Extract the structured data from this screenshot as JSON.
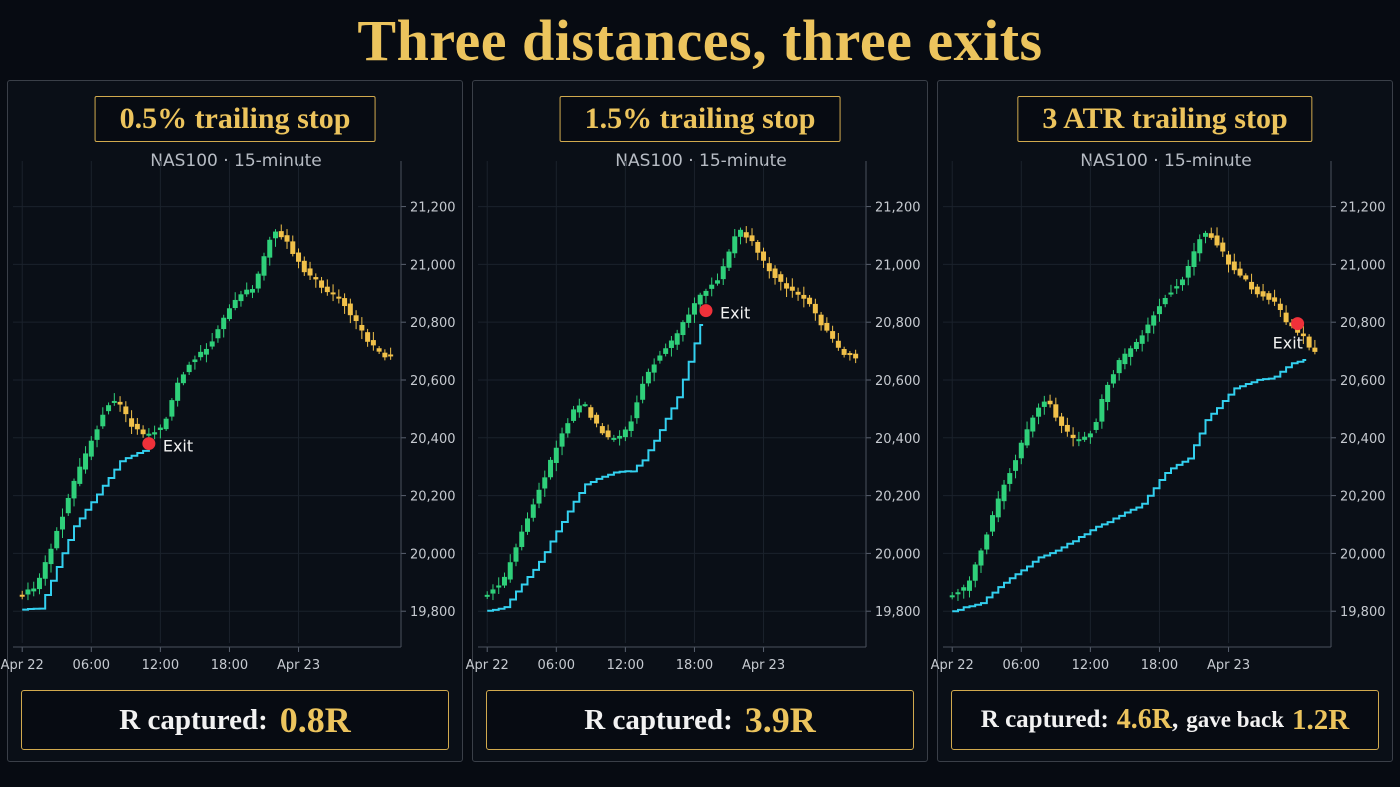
{
  "title": "Three distances, three exits",
  "colors": {
    "up": "#2fd07a",
    "down": "#f1c14a",
    "stop": "#33d0ef",
    "exit": "#f0313a",
    "accent": "#ecc45d",
    "grid": "#1b222c"
  },
  "chart_data": [
    {
      "type": "candlestick",
      "title": "0.5% trailing stop",
      "subtitle": "NAS100 · 15-minute",
      "x_ticks": [
        "Apr 22",
        "06:00",
        "12:00",
        "18:00",
        "Apr 23"
      ],
      "y_ticks": [
        "19,800",
        "20,000",
        "20,200",
        "20,400",
        "20,600",
        "20,800",
        "21,000",
        "21,200"
      ],
      "ylim": [
        19690,
        21330
      ],
      "x_hours_range": [
        -0.8,
        32.9
      ],
      "price_path": [
        [
          0,
          19860
        ],
        [
          1.5,
          19880
        ],
        [
          4.5,
          20220
        ],
        [
          7.5,
          20510
        ],
        [
          8.5,
          20530
        ],
        [
          9.5,
          20455
        ],
        [
          11.0,
          20400
        ],
        [
          12.5,
          20440
        ],
        [
          13.5,
          20560
        ],
        [
          14.5,
          20650
        ],
        [
          16.5,
          20720
        ],
        [
          18.5,
          20870
        ],
        [
          20.5,
          20930
        ],
        [
          22.0,
          21120
        ],
        [
          23.0,
          21090
        ],
        [
          24.5,
          20990
        ],
        [
          26.5,
          20910
        ],
        [
          28.0,
          20880
        ],
        [
          29.5,
          20780
        ],
        [
          31.0,
          20700
        ],
        [
          32.0,
          20680
        ]
      ],
      "stop_path": [
        [
          0,
          19805
        ],
        [
          1.5,
          19810
        ],
        [
          4.5,
          20095
        ],
        [
          7.5,
          20260
        ],
        [
          8.5,
          20320
        ],
        [
          11.0,
          20365
        ]
      ],
      "exit": {
        "x": 11.0,
        "y": 20380,
        "label": "Exit"
      },
      "result": {
        "label": "R captured:",
        "value": "0.8R"
      }
    },
    {
      "type": "candlestick",
      "title": "1.5% trailing stop",
      "subtitle": "NAS100 · 15-minute",
      "x_ticks": [
        "Apr 22",
        "06:00",
        "12:00",
        "18:00",
        "Apr 23"
      ],
      "y_ticks": [
        "19,800",
        "20,000",
        "20,200",
        "20,400",
        "20,600",
        "20,800",
        "21,000",
        "21,200"
      ],
      "ylim": [
        19690,
        21330
      ],
      "x_hours_range": [
        -0.8,
        32.9
      ],
      "price_path": [
        [
          0,
          19860
        ],
        [
          1.5,
          19890
        ],
        [
          4.5,
          20200
        ],
        [
          7.5,
          20480
        ],
        [
          8.5,
          20530
        ],
        [
          9.5,
          20455
        ],
        [
          11.0,
          20385
        ],
        [
          12.5,
          20430
        ],
        [
          13.5,
          20560
        ],
        [
          14.5,
          20650
        ],
        [
          16.5,
          20740
        ],
        [
          18.5,
          20880
        ],
        [
          20.5,
          20960
        ],
        [
          22.0,
          21120
        ],
        [
          23.0,
          21090
        ],
        [
          24.5,
          20990
        ],
        [
          26.5,
          20910
        ],
        [
          28.0,
          20880
        ],
        [
          29.5,
          20780
        ],
        [
          31.0,
          20700
        ],
        [
          32.0,
          20680
        ]
      ],
      "stop_path": [
        [
          0,
          19800
        ],
        [
          1.5,
          19815
        ],
        [
          4.5,
          19970
        ],
        [
          7.5,
          20180
        ],
        [
          8.5,
          20240
        ],
        [
          11.0,
          20280
        ],
        [
          12.5,
          20285
        ],
        [
          13.5,
          20320
        ],
        [
          14.5,
          20390
        ],
        [
          16.5,
          20540
        ],
        [
          18.5,
          20790
        ]
      ],
      "exit": {
        "x": 19.0,
        "y": 20840,
        "label": "Exit"
      },
      "result": {
        "label": "R captured:",
        "value": "3.9R"
      }
    },
    {
      "type": "candlestick",
      "title": "3 ATR trailing stop",
      "subtitle": "NAS100 · 15-minute",
      "x_ticks": [
        "Apr 22",
        "06:00",
        "12:00",
        "18:00",
        "Apr 23"
      ],
      "y_ticks": [
        "19,800",
        "20,000",
        "20,200",
        "20,400",
        "20,600",
        "20,800",
        "21,000",
        "21,200"
      ],
      "ylim": [
        19690,
        21330
      ],
      "x_hours_range": [
        -0.8,
        32.9
      ],
      "price_path": [
        [
          0,
          19860
        ],
        [
          1.5,
          19880
        ],
        [
          4.5,
          20210
        ],
        [
          7.5,
          20500
        ],
        [
          8.5,
          20530
        ],
        [
          9.5,
          20450
        ],
        [
          11.0,
          20380
        ],
        [
          12.5,
          20430
        ],
        [
          13.5,
          20560
        ],
        [
          14.5,
          20650
        ],
        [
          16.5,
          20740
        ],
        [
          18.5,
          20880
        ],
        [
          20.5,
          20960
        ],
        [
          22.0,
          21120
        ],
        [
          23.0,
          21090
        ],
        [
          24.5,
          20990
        ],
        [
          26.5,
          20910
        ],
        [
          28.0,
          20880
        ],
        [
          29.5,
          20790
        ],
        [
          30.5,
          20760
        ],
        [
          31.5,
          20700
        ]
      ],
      "stop_path": [
        [
          0,
          19800
        ],
        [
          2.5,
          19830
        ],
        [
          4.5,
          19900
        ],
        [
          7.5,
          19985
        ],
        [
          9.5,
          20020
        ],
        [
          12.5,
          20090
        ],
        [
          16.5,
          20170
        ],
        [
          18.5,
          20280
        ],
        [
          20.5,
          20330
        ],
        [
          22.0,
          20460
        ],
        [
          24.5,
          20570
        ],
        [
          26.5,
          20600
        ],
        [
          28.0,
          20610
        ],
        [
          29.5,
          20660
        ],
        [
          30.5,
          20670
        ]
      ],
      "exit": {
        "x": 30.0,
        "y": 20795,
        "label": "Exit"
      },
      "result": {
        "label": "R captured:",
        "value": "4.6R",
        "extra_label": "gave back",
        "extra_value": "1.2R"
      }
    }
  ]
}
